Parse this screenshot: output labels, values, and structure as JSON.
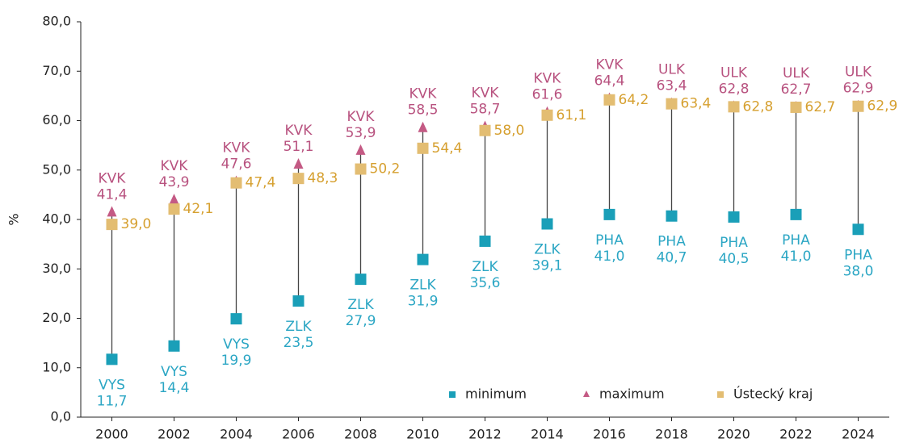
{
  "chart_data": {
    "type": "range",
    "y_label": "%",
    "categories": [
      "2000",
      "2002",
      "2004",
      "2006",
      "2008",
      "2010",
      "2012",
      "2014",
      "2016",
      "2018",
      "2020",
      "2022",
      "2024"
    ],
    "series": [
      {
        "name": "minimum",
        "color": "#1a9fb8",
        "label_color": "#2ba6c4",
        "marker": "square",
        "values": [
          11.7,
          14.4,
          19.9,
          23.5,
          27.9,
          31.9,
          35.6,
          39.1,
          41.0,
          40.7,
          40.5,
          41.0,
          38.0
        ],
        "value_labels": [
          "11,7",
          "14,4",
          "19,9",
          "23,5",
          "27,9",
          "31,9",
          "35,6",
          "39,1",
          "41,0",
          "40,7",
          "40,5",
          "41,0",
          "38,0"
        ],
        "region_labels": [
          "VYS",
          "VYS",
          "VYS",
          "ZLK",
          "ZLK",
          "ZLK",
          "ZLK",
          "ZLK",
          "PHA",
          "PHA",
          "PHA",
          "PHA",
          "PHA"
        ]
      },
      {
        "name": "maximum",
        "color": "#c45a84",
        "label_color": "#b8527f",
        "marker": "triangle",
        "values": [
          41.4,
          43.9,
          47.6,
          51.1,
          53.9,
          58.5,
          58.7,
          61.6,
          64.4,
          63.4,
          62.8,
          62.7,
          62.9
        ],
        "value_labels": [
          "41,4",
          "43,9",
          "47,6",
          "51,1",
          "53,9",
          "58,5",
          "58,7",
          "61,6",
          "64,4",
          "63,4",
          "62,8",
          "62,7",
          "62,9"
        ],
        "region_labels": [
          "KVK",
          "KVK",
          "KVK",
          "KVK",
          "KVK",
          "KVK",
          "KVK",
          "KVK",
          "KVK",
          "ULK",
          "ULK",
          "ULK",
          "ULK"
        ]
      },
      {
        "name": "Ústecký kraj",
        "color": "#e3bd72",
        "label_color": "#d6a030",
        "marker": "square",
        "values": [
          39.0,
          42.1,
          47.4,
          48.3,
          50.2,
          54.4,
          58.0,
          61.1,
          64.2,
          63.4,
          62.8,
          62.7,
          62.9
        ],
        "value_labels": [
          "39,0",
          "42,1",
          "47,4",
          "48,3",
          "50,2",
          "54,4",
          "58,0",
          "61,1",
          "64,2",
          "63,4",
          "62,8",
          "62,7",
          "62,9"
        ]
      }
    ],
    "ylim": [
      0,
      80
    ],
    "yticks": [
      {
        "value": 0,
        "label": "0,0"
      },
      {
        "value": 10,
        "label": "10,0"
      },
      {
        "value": 20,
        "label": "20,0"
      },
      {
        "value": 30,
        "label": "30,0"
      },
      {
        "value": 40,
        "label": "40,0"
      },
      {
        "value": 50,
        "label": "50,0"
      },
      {
        "value": 60,
        "label": "60,0"
      },
      {
        "value": 70,
        "label": "70,0"
      },
      {
        "value": 80,
        "label": "80,0"
      }
    ],
    "legend": "bottom-right"
  }
}
